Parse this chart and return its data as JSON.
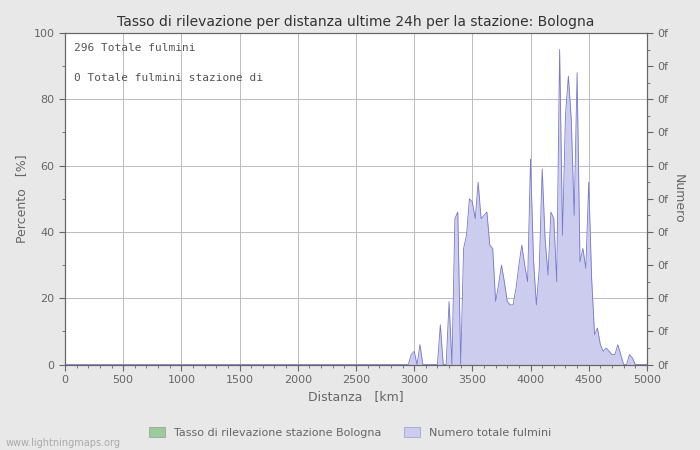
{
  "title": "Tasso di rilevazione per distanza ultime 24h per la stazione: Bologna",
  "xlabel": "Distanza   [km]",
  "ylabel_left": "Percento   [%]",
  "ylabel_right": "Numero",
  "annotation_line1": "296 Totale fulmini",
  "annotation_line2": "0 Totale fulmini stazione di",
  "xlim": [
    0,
    5000
  ],
  "ylim_left": [
    0,
    100
  ],
  "ylim_right": [
    0,
    100
  ],
  "xticks": [
    0,
    500,
    1000,
    1500,
    2000,
    2500,
    3000,
    3500,
    4000,
    4500,
    5000
  ],
  "yticks_left": [
    0,
    20,
    40,
    60,
    80,
    100
  ],
  "legend_label_green": "Tasso di rilevazione stazione Bologna",
  "legend_label_blue": "Numero totale fulmini",
  "bg_color": "#e8e8e8",
  "plot_bg_color": "#ffffff",
  "line_color": "#7777cc",
  "fill_color_blue": "#ccccee",
  "fill_color_green": "#99cc99",
  "watermark": "www.lightningmaps.org",
  "grid_color": "#bbbbbb",
  "tick_color": "#666666",
  "label_color": "#666666",
  "minor_tick_interval": 100,
  "data_x": [
    0,
    25,
    50,
    75,
    100,
    125,
    150,
    175,
    200,
    225,
    250,
    275,
    300,
    325,
    350,
    375,
    400,
    425,
    450,
    475,
    500,
    525,
    550,
    575,
    600,
    625,
    650,
    675,
    700,
    725,
    750,
    775,
    800,
    825,
    850,
    875,
    900,
    925,
    950,
    975,
    1000,
    1025,
    1050,
    1075,
    1100,
    1125,
    1150,
    1175,
    1200,
    1225,
    1250,
    1275,
    1300,
    1325,
    1350,
    1375,
    1400,
    1425,
    1450,
    1475,
    1500,
    1525,
    1550,
    1575,
    1600,
    1625,
    1650,
    1675,
    1700,
    1725,
    1750,
    1775,
    1800,
    1825,
    1850,
    1875,
    1900,
    1925,
    1950,
    1975,
    2000,
    2025,
    2050,
    2075,
    2100,
    2125,
    2150,
    2175,
    2200,
    2225,
    2250,
    2275,
    2300,
    2325,
    2350,
    2375,
    2400,
    2425,
    2450,
    2475,
    2500,
    2525,
    2550,
    2575,
    2600,
    2625,
    2650,
    2675,
    2700,
    2725,
    2750,
    2775,
    2800,
    2825,
    2850,
    2875,
    2900,
    2925,
    2950,
    2975,
    3000,
    3025,
    3050,
    3075,
    3100,
    3125,
    3150,
    3175,
    3200,
    3225,
    3250,
    3275,
    3300,
    3325,
    3350,
    3375,
    3400,
    3425,
    3450,
    3475,
    3500,
    3525,
    3550,
    3575,
    3600,
    3625,
    3650,
    3675,
    3700,
    3725,
    3750,
    3775,
    3800,
    3825,
    3850,
    3875,
    3900,
    3925,
    3950,
    3975,
    4000,
    4025,
    4050,
    4075,
    4100,
    4125,
    4150,
    4175,
    4200,
    4225,
    4250,
    4275,
    4300,
    4325,
    4350,
    4375,
    4400,
    4425,
    4450,
    4475,
    4500,
    4525,
    4550,
    4575,
    4600,
    4625,
    4650,
    4675,
    4700,
    4725,
    4750,
    4775,
    4800,
    4825,
    4850,
    4875,
    4900,
    4925,
    4950,
    4975,
    5000
  ],
  "data_y": [
    0,
    0,
    0,
    0,
    0,
    0,
    0,
    0,
    0,
    0,
    0,
    0,
    0,
    0,
    0,
    0,
    0,
    0,
    0,
    0,
    0,
    0,
    0,
    0,
    0,
    0,
    0,
    0,
    0,
    0,
    0,
    0,
    0,
    0,
    0,
    0,
    0,
    0,
    0,
    0,
    0,
    0,
    0,
    0,
    0,
    0,
    0,
    0,
    0,
    0,
    0,
    0,
    0,
    0,
    0,
    0,
    0,
    0,
    0,
    0,
    0,
    0,
    0,
    0,
    0,
    0,
    0,
    0,
    0,
    0,
    0,
    0,
    0,
    0,
    0,
    0,
    0,
    0,
    0,
    0,
    0,
    0,
    0,
    0,
    0,
    0,
    0,
    0,
    0,
    0,
    0,
    0,
    0,
    0,
    0,
    0,
    0,
    0,
    0,
    0,
    0,
    0,
    0,
    0,
    0,
    0,
    0,
    0,
    0,
    0,
    0,
    0,
    0,
    0,
    0,
    0,
    0,
    0,
    0,
    3,
    4,
    0,
    6,
    0,
    0,
    0,
    0,
    0,
    0,
    12,
    0,
    0,
    19,
    0,
    44,
    46,
    0,
    35,
    39,
    50,
    49,
    44,
    55,
    44,
    45,
    46,
    36,
    35,
    19,
    24,
    30,
    25,
    19,
    18,
    18,
    23,
    30,
    36,
    30,
    25,
    62,
    32,
    18,
    29,
    59,
    38,
    27,
    46,
    44,
    25,
    95,
    39,
    75,
    87,
    74,
    45,
    88,
    31,
    35,
    29,
    55,
    26,
    9,
    11,
    6,
    4,
    5,
    4,
    3,
    3,
    6,
    3,
    0,
    0,
    3,
    2,
    0,
    0,
    0,
    0,
    0
  ],
  "det_y": [
    0,
    0,
    0,
    0,
    0,
    0,
    0,
    0,
    0,
    0,
    0,
    0,
    0,
    0,
    0,
    0,
    0,
    0,
    0,
    0,
    0,
    0,
    0,
    0,
    0,
    0,
    0,
    0,
    0,
    0,
    0,
    0,
    0,
    0,
    0,
    0,
    0,
    0,
    0,
    0,
    0,
    0,
    0,
    0,
    0,
    0,
    0,
    0,
    0,
    0,
    0,
    0,
    0,
    0,
    0,
    0,
    0,
    0,
    0,
    0,
    0,
    0,
    0,
    0,
    0,
    0,
    0,
    0,
    0,
    0,
    0,
    0,
    0,
    0,
    0,
    0,
    0,
    0,
    0,
    0,
    0,
    0,
    0,
    0,
    0,
    0,
    0,
    0,
    0,
    0,
    0,
    0,
    0,
    0,
    0,
    0,
    0,
    0,
    0,
    0,
    0,
    0,
    0,
    0,
    0,
    0,
    0,
    0,
    0,
    0,
    0,
    0,
    0,
    0,
    0,
    0,
    0,
    0,
    0,
    0,
    0,
    0,
    0,
    0,
    0,
    0,
    0,
    0,
    0,
    0,
    0,
    0,
    0,
    0,
    0,
    0,
    0,
    0,
    0,
    0,
    0,
    0,
    0,
    0,
    0,
    0,
    0,
    0,
    0,
    0,
    0,
    0,
    0,
    0,
    0,
    0,
    0,
    0,
    0,
    0,
    0,
    0,
    0,
    0,
    0,
    0,
    0,
    0,
    0,
    0,
    0,
    0,
    0,
    0,
    0,
    0,
    0,
    0,
    0,
    0,
    0,
    0,
    0,
    0,
    0,
    0,
    0,
    0,
    0,
    0,
    0,
    0,
    0,
    0,
    0,
    0,
    0,
    0,
    0,
    0,
    0
  ]
}
